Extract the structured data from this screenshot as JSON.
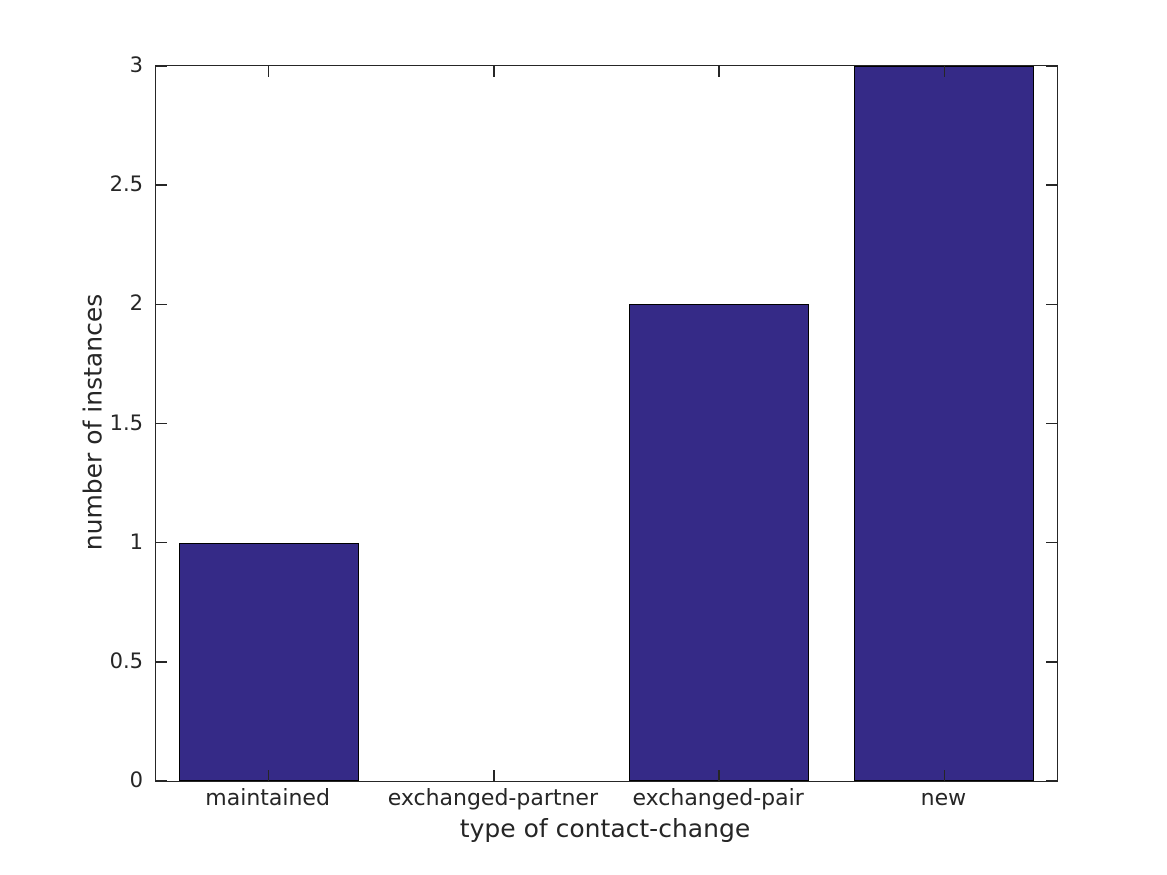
{
  "figure": {
    "background_color": "#ffffff"
  },
  "chart_data": {
    "type": "bar",
    "categories": [
      "maintained",
      "exchanged-partner",
      "exchanged-pair",
      "new"
    ],
    "values": [
      1,
      0,
      2,
      3
    ],
    "xlabel": "type of contact-change",
    "ylabel": "number of instances",
    "ylim": [
      0,
      3
    ],
    "yticks": [
      0,
      0.5,
      1,
      1.5,
      2,
      2.5,
      3
    ],
    "ytick_labels": [
      "0",
      "0.5",
      "1",
      "1.5",
      "2",
      "2.5",
      "3"
    ],
    "bar_width_fraction": 0.8,
    "bar_color": "#352a87",
    "bar_edge_color": "#000000",
    "axis_color": "#262626",
    "text_color": "#262626",
    "grid": false,
    "legend": null,
    "box": true,
    "tick_direction": "in"
  }
}
